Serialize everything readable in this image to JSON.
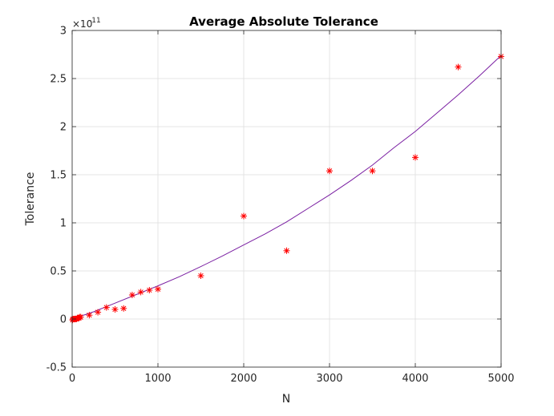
{
  "chart_data": {
    "type": "scatter",
    "title": "Average Absolute Tolerance",
    "xlabel": "N",
    "ylabel": "Tolerance",
    "xlim": [
      0,
      5000
    ],
    "ylim": [
      -0.5,
      3
    ],
    "y_multiplier_base": "×10",
    "y_multiplier_exp": "-11",
    "grid": true,
    "xticks": [
      0,
      1000,
      2000,
      3000,
      4000,
      5000
    ],
    "xtick_labels": [
      "0",
      "1000",
      "2000",
      "3000",
      "4000",
      "5000"
    ],
    "yticks": [
      -0.5,
      0,
      0.5,
      1,
      1.5,
      2,
      2.5,
      3
    ],
    "ytick_labels": [
      "-0.5",
      "0",
      "0.5",
      "1",
      "1.5",
      "2",
      "2.5",
      "3"
    ],
    "colors": {
      "points": "#ff0000",
      "fit": "#7a1fa2",
      "grid": "#dcdcdc",
      "axes": "#262626"
    },
    "series": [
      {
        "kind": "points",
        "marker": "asterisk",
        "x": [
          5,
          10,
          20,
          30,
          40,
          50,
          60,
          70,
          80,
          90,
          100,
          200,
          300,
          400,
          500,
          600,
          700,
          800,
          900,
          1000,
          1500,
          2000,
          2500,
          3000,
          3500,
          4000,
          4500,
          5000
        ],
        "y": [
          -0.01,
          0,
          0,
          0,
          0,
          0,
          0.01,
          0.01,
          0.01,
          0.02,
          0.02,
          0.04,
          0.07,
          0.12,
          0.1,
          0.11,
          0.25,
          0.28,
          0.3,
          0.31,
          0.45,
          1.07,
          0.71,
          1.54,
          1.54,
          1.68,
          2.62,
          2.73
        ]
      },
      {
        "kind": "fit",
        "x": [
          0,
          250,
          500,
          750,
          1000,
          1250,
          1500,
          1750,
          2000,
          2250,
          2500,
          2750,
          3000,
          3250,
          3500,
          3750,
          4000,
          4250,
          4500,
          4750,
          5000
        ],
        "y": [
          0,
          0.075,
          0.165,
          0.255,
          0.345,
          0.44,
          0.545,
          0.655,
          0.77,
          0.885,
          1.01,
          1.15,
          1.29,
          1.44,
          1.6,
          1.78,
          1.95,
          2.14,
          2.33,
          2.53,
          2.74
        ]
      }
    ]
  }
}
